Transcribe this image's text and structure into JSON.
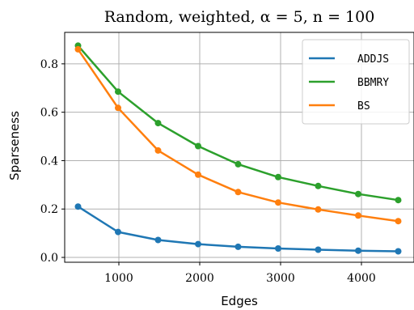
{
  "chart_data": {
    "type": "line",
    "title": "Random, weighted, α = 5, n = 100",
    "xlabel": "Edges",
    "ylabel": "Sparseness",
    "xlim": [
      330,
      4650
    ],
    "ylim": [
      -0.02,
      0.93
    ],
    "xticks": [
      1000,
      2000,
      3000,
      4000
    ],
    "yticks": [
      0.0,
      0.2,
      0.4,
      0.6,
      0.8
    ],
    "xtick_labels": [
      "1000",
      "2000",
      "3000",
      "4000"
    ],
    "ytick_labels": [
      "0.0",
      "0.2",
      "0.4",
      "0.6",
      "0.8"
    ],
    "grid": true,
    "legend_position": "top-right",
    "x": [
      495,
      990,
      1485,
      1980,
      2475,
      2970,
      3465,
      3960,
      4455
    ],
    "series": [
      {
        "name": "ADDJS",
        "color": "#1f77b4",
        "values": [
          0.21,
          0.105,
          0.072,
          0.055,
          0.044,
          0.037,
          0.032,
          0.028,
          0.025
        ]
      },
      {
        "name": "BBMRY",
        "color": "#2ca02c",
        "values": [
          0.875,
          0.685,
          0.555,
          0.46,
          0.385,
          0.332,
          0.295,
          0.262,
          0.237
        ]
      },
      {
        "name": "BS",
        "color": "#ff7f0e",
        "values": [
          0.86,
          0.618,
          0.442,
          0.342,
          0.27,
          0.227,
          0.198,
          0.173,
          0.15
        ]
      }
    ]
  }
}
